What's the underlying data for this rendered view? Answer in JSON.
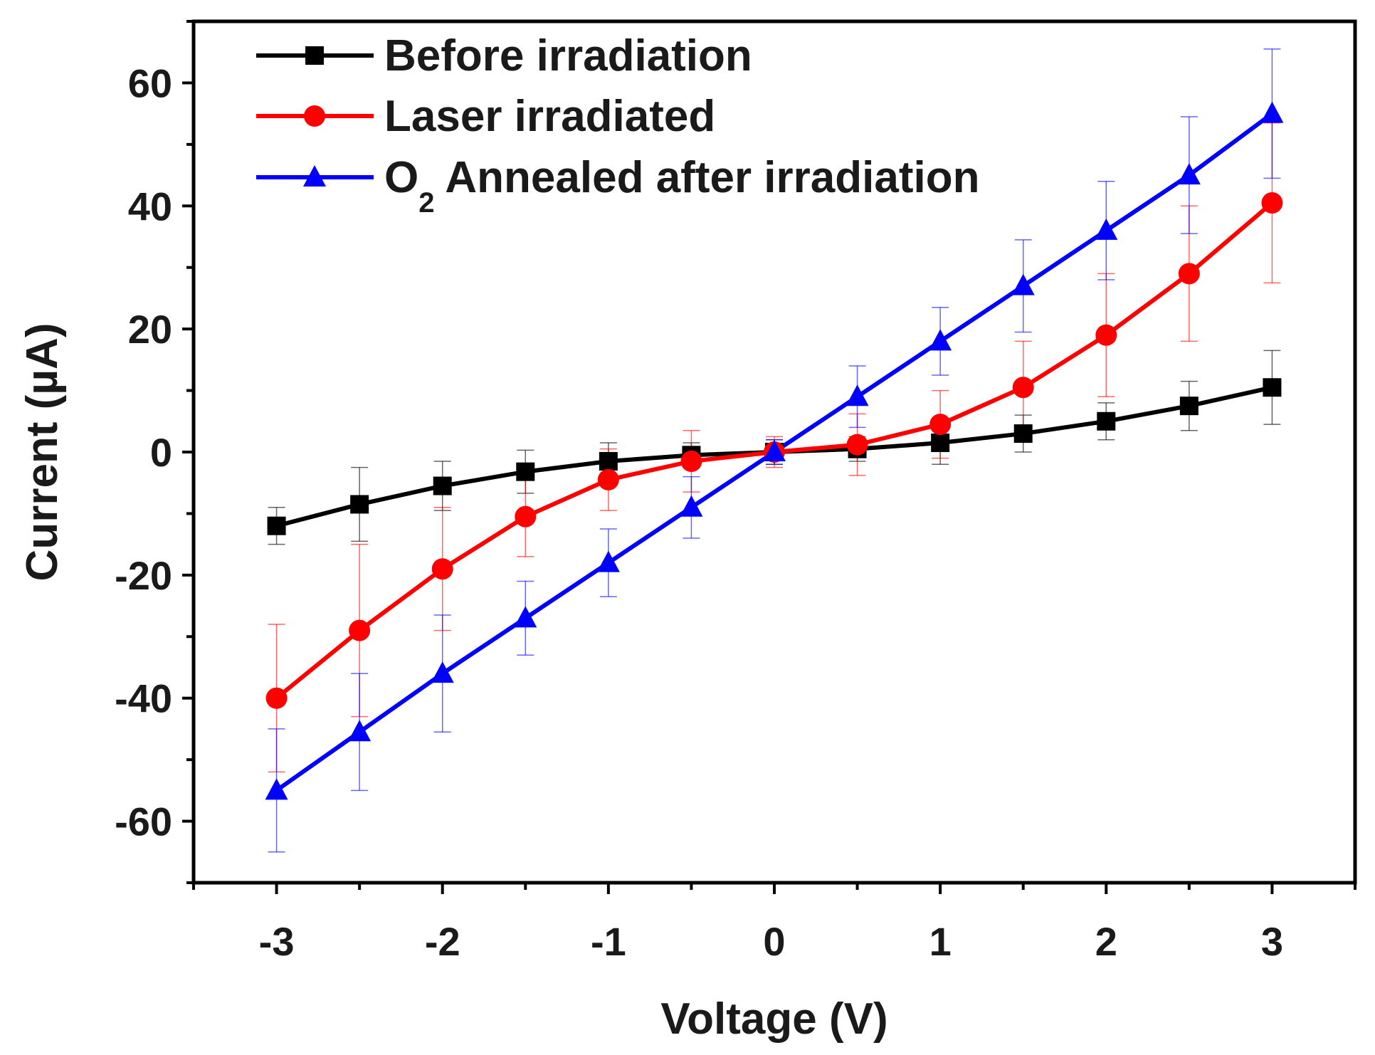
{
  "chart_data": {
    "type": "line",
    "title": "",
    "xlabel": "Voltage (V)",
    "ylabel": "Current (µA)",
    "xlim": [
      -3.5,
      3.5
    ],
    "ylim": [
      -70,
      70
    ],
    "x_ticks": [
      "-3",
      "-2",
      "-1",
      "0",
      "1",
      "2",
      "3"
    ],
    "y_ticks": [
      "60",
      "40",
      "20",
      "0",
      "-20",
      "-40",
      "-60"
    ],
    "x": [
      -3,
      -2.5,
      -2,
      -1.5,
      -1,
      -0.5,
      0,
      0.5,
      1,
      1.5,
      2,
      2.5,
      3
    ],
    "grid": false,
    "legend_position": "top-left",
    "series": [
      {
        "name": "Before irradiation",
        "color": "#000000",
        "marker": "square",
        "values": [
          -12,
          -8.5,
          -5.5,
          -3.2,
          -1.5,
          -0.5,
          0,
          0.5,
          1.5,
          3,
          5,
          7.5,
          10.5
        ],
        "error": [
          3,
          6,
          4,
          3.5,
          3,
          2,
          2,
          2,
          3.5,
          3,
          3,
          4,
          6
        ]
      },
      {
        "name": "Laser irradiated",
        "color": "#ff0000",
        "marker": "circle",
        "values": [
          -40,
          -29,
          -19,
          -10.5,
          -4.5,
          -1.5,
          0,
          1.2,
          4.5,
          10.5,
          19,
          29,
          40.5
        ],
        "error": [
          12,
          14,
          10,
          6.5,
          5,
          5,
          2.5,
          5,
          5.5,
          7.5,
          10,
          11,
          13
        ]
      },
      {
        "name": "O2 Annealed after irradiation",
        "color": "#0000ff",
        "marker": "triangle",
        "values": [
          -55,
          -45.5,
          -36,
          -27,
          -18,
          -9,
          0,
          9,
          18,
          27,
          36,
          45,
          55
        ],
        "error": [
          10,
          9.5,
          9.5,
          6,
          5.5,
          5,
          2,
          5,
          5.5,
          7.5,
          8,
          9.5,
          10.5
        ]
      }
    ],
    "legend": {
      "entries": [
        {
          "label": "Before irradiation"
        },
        {
          "label": "Laser irradiated"
        },
        {
          "label_main": "O",
          "label_sub": "2",
          "label_rest": " Annealed after irradiation"
        }
      ]
    }
  }
}
